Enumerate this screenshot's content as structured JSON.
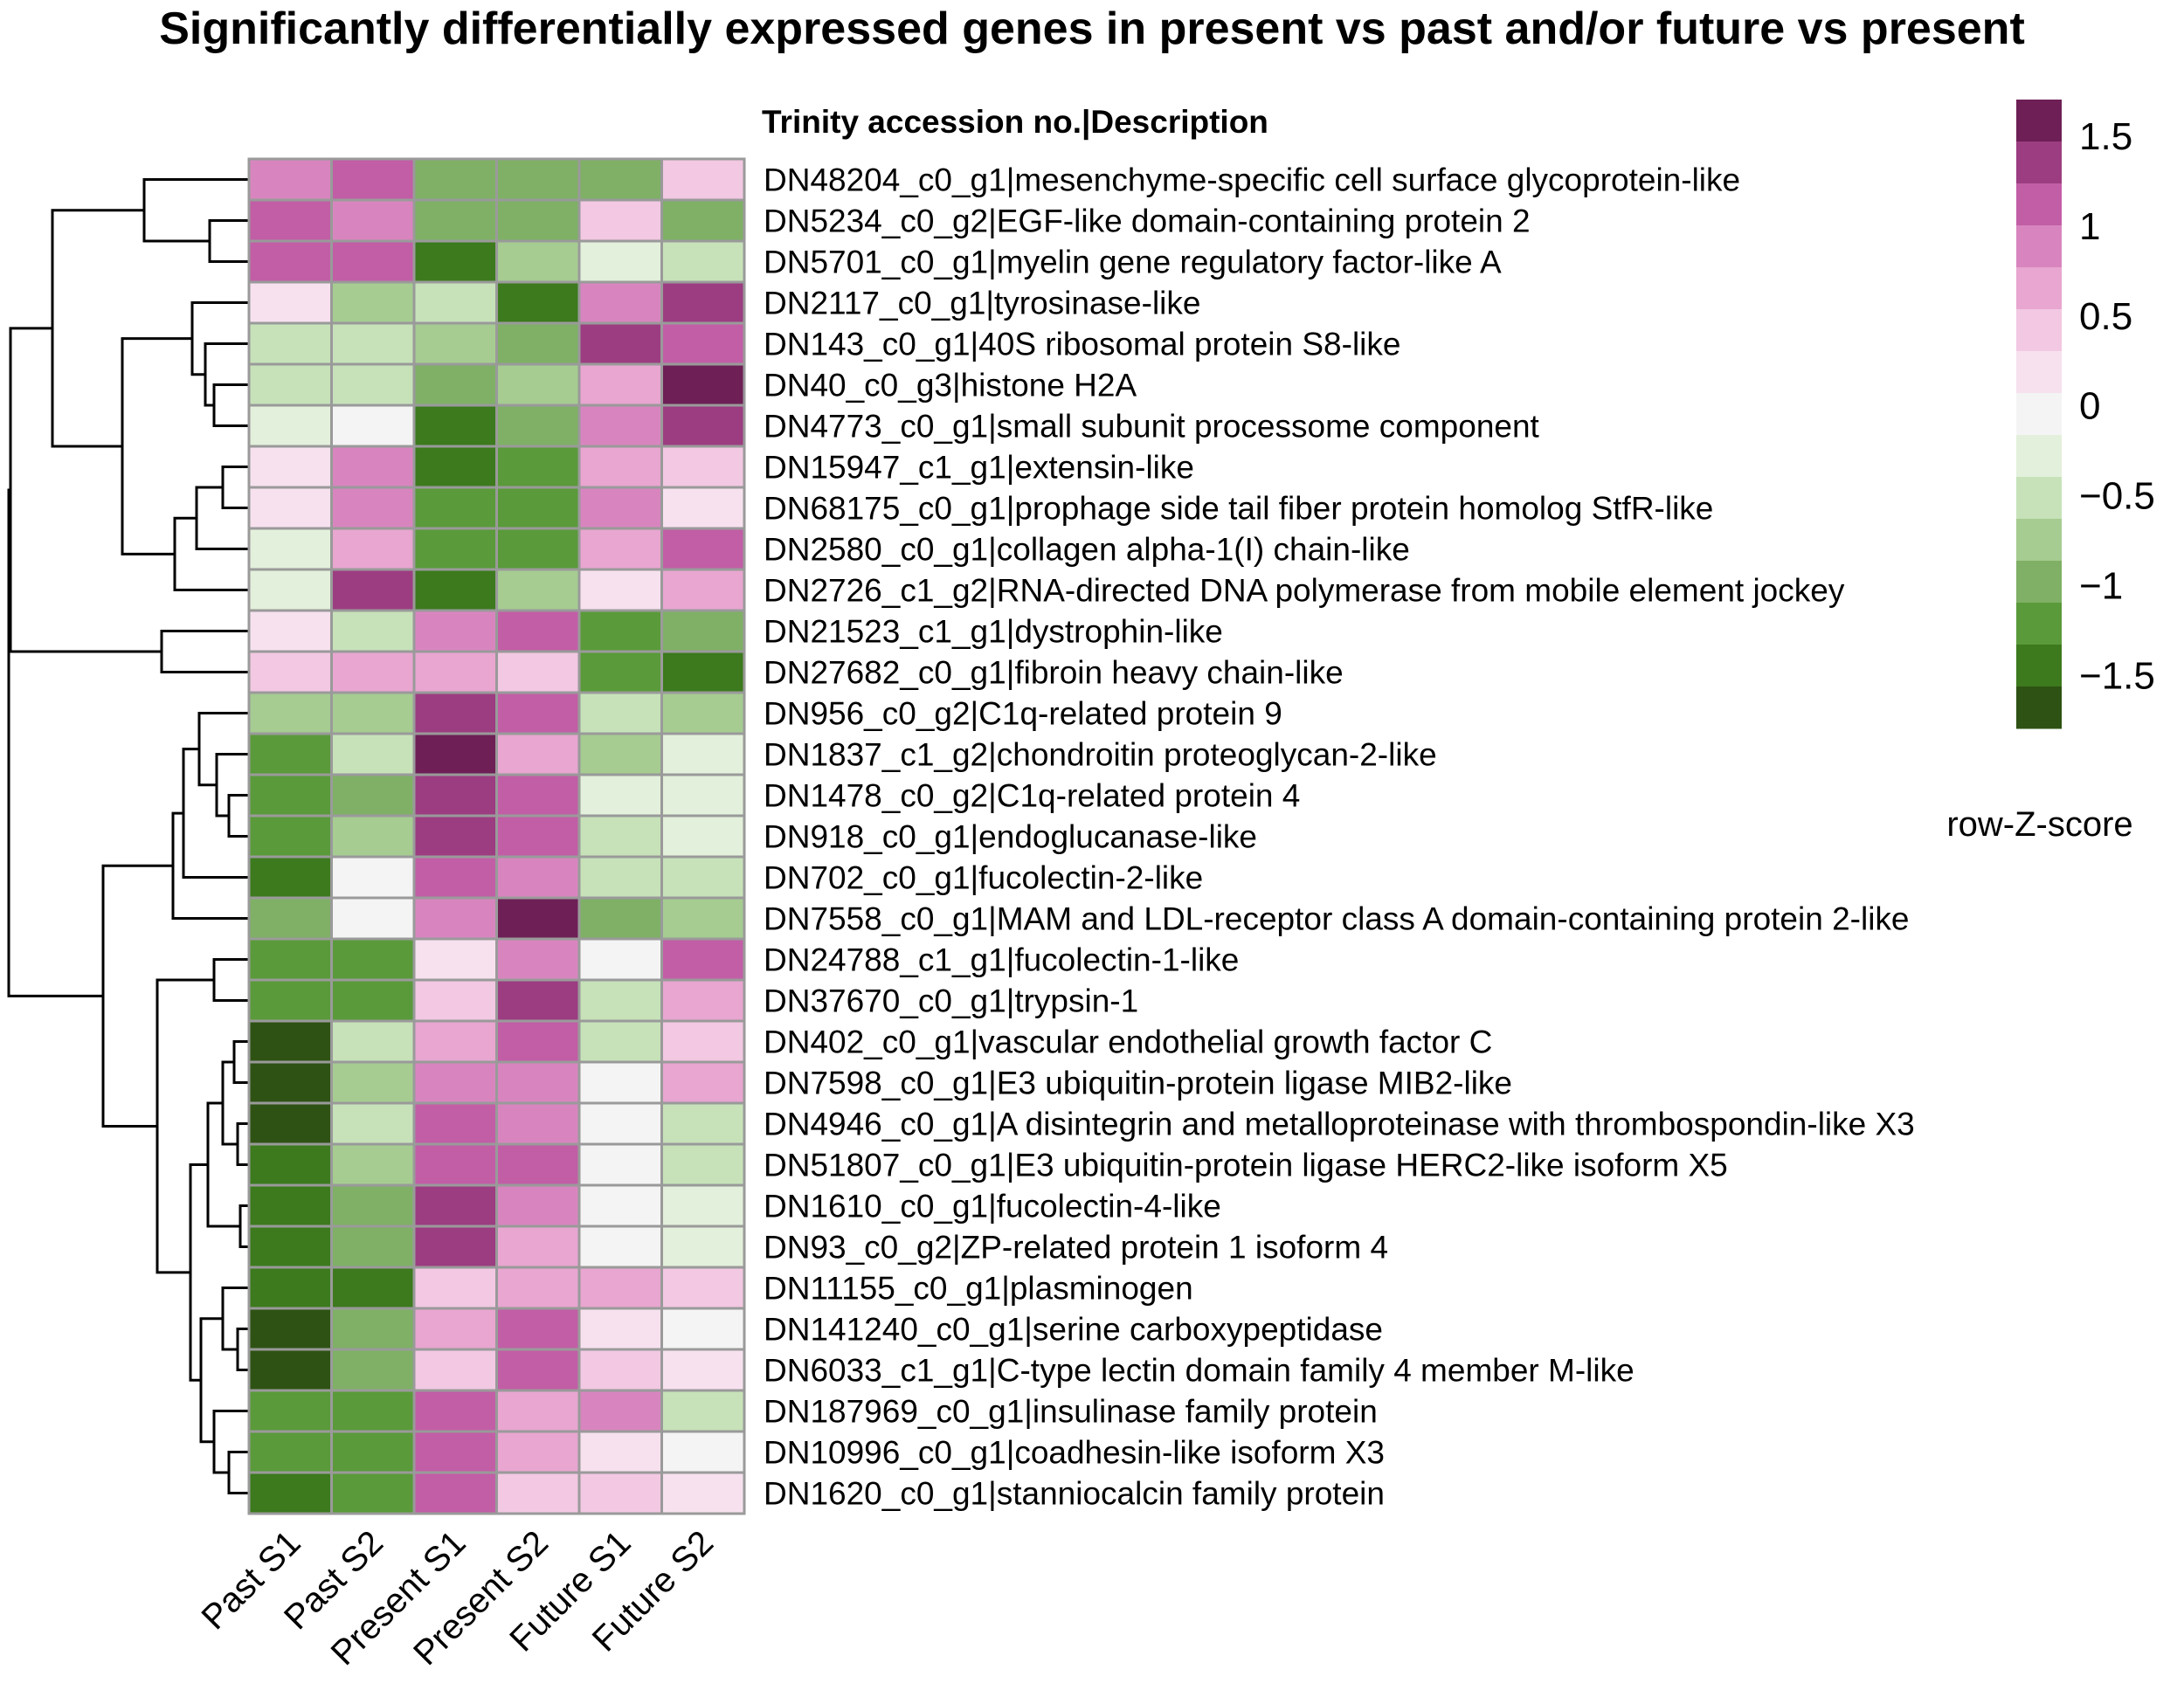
{
  "chart_data": {
    "type": "heatmap",
    "title": "Significantly differentially expressed genes in present vs past and/or future vs present",
    "row_header": "Trinity accession no.|Description",
    "columns": [
      "Past S1",
      "Past S2",
      "Present S1",
      "Present S2",
      "Future S1",
      "Future S2"
    ],
    "rows": [
      "DN48204_c0_g1|mesenchyme-specific cell surface glycoprotein-like",
      "DN5234_c0_g2|EGF-like domain-containing protein 2",
      "DN5701_c0_g1|myelin gene regulatory factor-like A",
      "DN2117_c0_g1|tyrosinase-like",
      "DN143_c0_g1|40S ribosomal protein S8-like",
      "DN40_c0_g3|histone H2A",
      "DN4773_c0_g1|small subunit processome component",
      "DN15947_c1_g1|extensin-like",
      "DN68175_c0_g1|prophage side tail fiber protein homolog StfR-like",
      "DN2580_c0_g1|collagen alpha-1(I) chain-like",
      "DN2726_c1_g2|RNA-directed DNA polymerase from mobile element jockey",
      "DN21523_c1_g1|dystrophin-like",
      "DN27682_c0_g1|fibroin heavy chain-like",
      "DN956_c0_g2|C1q-related protein 9",
      "DN1837_c1_g2|chondroitin proteoglycan-2-like",
      "DN1478_c0_g2|C1q-related protein 4",
      "DN918_c0_g1|endoglucanase-like",
      "DN702_c0_g1|fucolectin-2-like",
      "DN7558_c0_g1|MAM and LDL-receptor class A domain-containing protein 2-like",
      "DN24788_c1_g1|fucolectin-1-like",
      "DN37670_c0_g1|trypsin-1",
      "DN402_c0_g1|vascular endothelial growth factor C",
      "DN7598_c0_g1|E3 ubiquitin-protein ligase MIB2-like",
      "DN4946_c0_g1|A disintegrin and metalloproteinase with thrombospondin-like X3",
      "DN51807_c0_g1|E3 ubiquitin-protein ligase HERC2-like isoform X5",
      "DN1610_c0_g1|fucolectin-4-like",
      "DN93_c0_g2|ZP-related protein 1 isoform 4",
      "DN11155_c0_g1|plasminogen",
      "DN141240_c0_g1|serine carboxypeptidase",
      "DN6033_c1_g1|C-type lectin domain family 4 member M-like",
      "DN187969_c0_g1|insulinase family protein",
      "DN10996_c0_g1|coadhesin-like isoform X3",
      "DN1620_c0_g1|stanniocalcin family protein"
    ],
    "values": [
      [
        0.8,
        1.1,
        -0.9,
        -0.9,
        -0.9,
        0.4
      ],
      [
        1.1,
        0.8,
        -0.9,
        -0.9,
        0.4,
        -0.9
      ],
      [
        1.1,
        1.1,
        -1.5,
        -0.7,
        -0.2,
        -0.5
      ],
      [
        0.2,
        -0.7,
        -0.5,
        -1.5,
        0.8,
        1.3
      ],
      [
        -0.5,
        -0.5,
        -0.7,
        -0.9,
        1.3,
        1.1
      ],
      [
        -0.5,
        -0.5,
        -0.9,
        -0.7,
        0.6,
        1.6
      ],
      [
        -0.3,
        0.0,
        -1.5,
        -0.9,
        0.8,
        1.3
      ],
      [
        0.2,
        0.8,
        -1.5,
        -1.2,
        0.6,
        0.4
      ],
      [
        0.2,
        0.8,
        -1.2,
        -1.2,
        0.8,
        0.2
      ],
      [
        -0.3,
        0.6,
        -1.2,
        -1.2,
        0.6,
        1.1
      ],
      [
        -0.3,
        1.3,
        -1.5,
        -0.7,
        0.2,
        0.6
      ],
      [
        0.2,
        -0.5,
        0.8,
        1.1,
        -1.2,
        -0.9
      ],
      [
        0.4,
        0.6,
        0.6,
        0.4,
        -1.2,
        -1.5
      ],
      [
        -0.7,
        -0.7,
        1.3,
        1.1,
        -0.5,
        -0.7
      ],
      [
        -1.2,
        -0.5,
        1.6,
        0.6,
        -0.7,
        -0.3
      ],
      [
        -1.2,
        -0.9,
        1.3,
        1.1,
        -0.3,
        -0.3
      ],
      [
        -1.2,
        -0.7,
        1.3,
        1.1,
        -0.5,
        -0.3
      ],
      [
        -1.5,
        0.0,
        1.1,
        0.8,
        -0.5,
        -0.5
      ],
      [
        -0.9,
        0.0,
        0.8,
        1.6,
        -0.9,
        -0.7
      ],
      [
        -1.2,
        -1.2,
        0.2,
        0.8,
        0.0,
        1.1
      ],
      [
        -1.2,
        -1.2,
        0.4,
        1.3,
        -0.5,
        0.6
      ],
      [
        -1.7,
        -0.5,
        0.6,
        1.1,
        -0.5,
        0.4
      ],
      [
        -1.7,
        -0.7,
        0.8,
        0.8,
        0.0,
        0.6
      ],
      [
        -1.7,
        -0.5,
        1.1,
        0.8,
        0.0,
        -0.5
      ],
      [
        -1.5,
        -0.7,
        1.1,
        1.1,
        0.0,
        -0.5
      ],
      [
        -1.5,
        -0.9,
        1.3,
        0.8,
        0.0,
        -0.3
      ],
      [
        -1.5,
        -0.9,
        1.3,
        0.6,
        0.0,
        -0.3
      ],
      [
        -1.5,
        -1.5,
        0.4,
        0.6,
        0.6,
        0.4
      ],
      [
        -1.7,
        -0.9,
        0.6,
        1.1,
        0.2,
        0.0
      ],
      [
        -1.7,
        -0.9,
        0.4,
        1.1,
        0.4,
        0.2
      ],
      [
        -1.2,
        -1.2,
        1.1,
        0.6,
        0.8,
        -0.5
      ],
      [
        -1.2,
        -1.2,
        1.1,
        0.6,
        0.2,
        0.0
      ],
      [
        -1.5,
        -1.2,
        1.1,
        0.4,
        0.4,
        0.2
      ]
    ],
    "color_scale": {
      "title": "row-Z-score",
      "min": -1.8,
      "max": 1.7,
      "ticks": [
        1.5,
        1,
        0.5,
        0,
        -0.5,
        -1,
        -1.5
      ],
      "tick_labels": [
        "1.5",
        "1",
        "0.5",
        "0",
        "−0.5",
        "−1",
        "−1.5"
      ],
      "colors": [
        "#2e5214",
        "#3c7a1d",
        "#5a9a3a",
        "#7fb066",
        "#a6cc91",
        "#c7e2b9",
        "#e3f0db",
        "#f4f4f4",
        "#f7e1ef",
        "#f2c8e2",
        "#e8a6d0",
        "#d885bf",
        "#c25ea6",
        "#9c3d81",
        "#6e1f56"
      ]
    },
    "legend_position": "right",
    "cell_border_color": "#9a9a9a",
    "dendrogram": "rows"
  }
}
